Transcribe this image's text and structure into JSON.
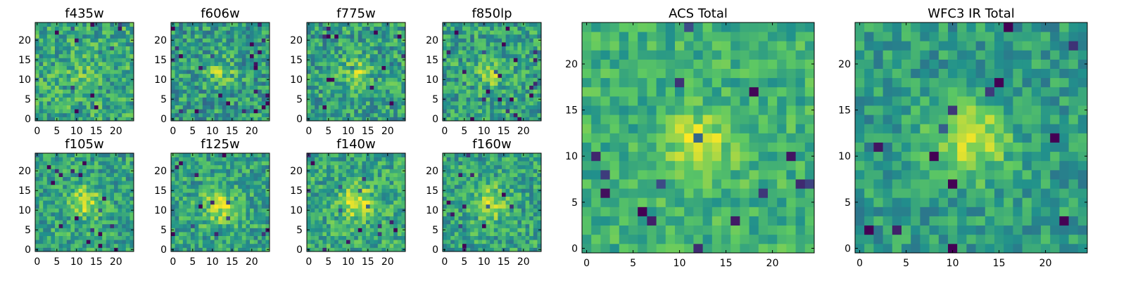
{
  "figure": {
    "background": "#ffffff"
  },
  "colormap": {
    "name": "viridis",
    "stops": [
      "#440154",
      "#3b528b",
      "#21918c",
      "#5ec962",
      "#fde725"
    ]
  },
  "chart_data": [
    {
      "type": "heatmap",
      "title": "f435w",
      "grid_size": 25,
      "xticks": [
        0,
        5,
        10,
        15,
        20
      ],
      "yticks": [
        0,
        5,
        10,
        15,
        20
      ],
      "xlim": [
        -0.5,
        24.5
      ],
      "ylim": [
        -0.5,
        24.5
      ],
      "peak": [
        12,
        11
      ],
      "peak_amp": 0.1,
      "peak_sigma": 3,
      "base": 0.6,
      "noise": 0.22,
      "seed": 11
    },
    {
      "type": "heatmap",
      "title": "f606w",
      "grid_size": 25,
      "xticks": [
        0,
        5,
        10,
        15,
        20
      ],
      "yticks": [
        0,
        5,
        10,
        15,
        20
      ],
      "xlim": [
        -0.5,
        24.5
      ],
      "ylim": [
        -0.5,
        24.5
      ],
      "peak": [
        12,
        12
      ],
      "peak_amp": 0.22,
      "peak_sigma": 2.5,
      "base": 0.55,
      "noise": 0.22,
      "seed": 22
    },
    {
      "type": "heatmap",
      "title": "f775w",
      "grid_size": 25,
      "xticks": [
        0,
        5,
        10,
        15,
        20
      ],
      "yticks": [
        0,
        5,
        10,
        15,
        20
      ],
      "xlim": [
        -0.5,
        24.5
      ],
      "ylim": [
        -0.5,
        24.5
      ],
      "peak": [
        12,
        12
      ],
      "peak_amp": 0.25,
      "peak_sigma": 2.5,
      "base": 0.57,
      "noise": 0.22,
      "seed": 33
    },
    {
      "type": "heatmap",
      "title": "f850lp",
      "grid_size": 25,
      "xticks": [
        0,
        5,
        10,
        15,
        20
      ],
      "yticks": [
        0,
        5,
        10,
        15,
        20
      ],
      "xlim": [
        -0.5,
        24.5
      ],
      "ylim": [
        -0.5,
        24.5
      ],
      "peak": [
        12,
        12
      ],
      "peak_amp": 0.25,
      "peak_sigma": 2.5,
      "base": 0.57,
      "noise": 0.22,
      "seed": 44
    },
    {
      "type": "heatmap",
      "title": "f105w",
      "grid_size": 25,
      "xticks": [
        0,
        5,
        10,
        15,
        20
      ],
      "yticks": [
        0,
        5,
        10,
        15,
        20
      ],
      "xlim": [
        -0.5,
        24.5
      ],
      "ylim": [
        -0.5,
        24.5
      ],
      "peak": [
        12,
        12
      ],
      "peak_amp": 0.3,
      "peak_sigma": 3,
      "base": 0.58,
      "noise": 0.2,
      "seed": 55
    },
    {
      "type": "heatmap",
      "title": "f125w",
      "grid_size": 25,
      "xticks": [
        0,
        5,
        10,
        15,
        20
      ],
      "yticks": [
        0,
        5,
        10,
        15,
        20
      ],
      "xlim": [
        -0.5,
        24.5
      ],
      "ylim": [
        -0.5,
        24.5
      ],
      "peak": [
        12,
        11
      ],
      "peak_amp": 0.3,
      "peak_sigma": 3,
      "base": 0.58,
      "noise": 0.2,
      "seed": 66
    },
    {
      "type": "heatmap",
      "title": "f140w",
      "grid_size": 25,
      "xticks": [
        0,
        5,
        10,
        15,
        20
      ],
      "yticks": [
        0,
        5,
        10,
        15,
        20
      ],
      "xlim": [
        -0.5,
        24.5
      ],
      "ylim": [
        -0.5,
        24.5
      ],
      "peak": [
        12,
        12
      ],
      "peak_amp": 0.3,
      "peak_sigma": 3,
      "base": 0.6,
      "noise": 0.2,
      "seed": 77
    },
    {
      "type": "heatmap",
      "title": "f160w",
      "grid_size": 25,
      "xticks": [
        0,
        5,
        10,
        15,
        20
      ],
      "yticks": [
        0,
        5,
        10,
        15,
        20
      ],
      "xlim": [
        -0.5,
        24.5
      ],
      "ylim": [
        -0.5,
        24.5
      ],
      "peak": [
        12,
        12
      ],
      "peak_amp": 0.3,
      "peak_sigma": 3,
      "base": 0.58,
      "noise": 0.2,
      "seed": 88
    },
    {
      "type": "heatmap",
      "title": "ACS Total",
      "grid_size": 25,
      "xticks": [
        0,
        5,
        10,
        15,
        20
      ],
      "yticks": [
        0,
        5,
        10,
        15,
        20
      ],
      "xlim": [
        -0.5,
        24.5
      ],
      "ylim": [
        -0.5,
        24.5
      ],
      "peak": [
        12,
        11
      ],
      "peak_amp": 0.3,
      "peak_sigma": 2.5,
      "base": 0.64,
      "noise": 0.15,
      "seed": 99
    },
    {
      "type": "heatmap",
      "title": "WFC3 IR Total",
      "grid_size": 25,
      "xticks": [
        0,
        5,
        10,
        15,
        20
      ],
      "yticks": [
        0,
        5,
        10,
        15,
        20
      ],
      "xlim": [
        -0.5,
        24.5
      ],
      "ylim": [
        -0.5,
        24.5
      ],
      "peak": [
        12,
        12
      ],
      "peak_amp": 0.35,
      "peak_sigma": 3,
      "base": 0.55,
      "noise": 0.16,
      "seed": 111
    }
  ]
}
